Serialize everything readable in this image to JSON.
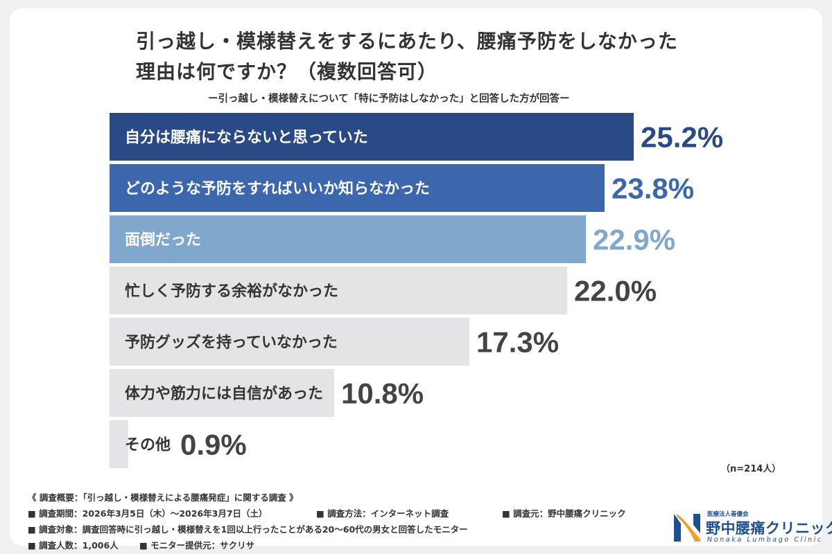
{
  "header": {
    "title_line1": "引っ越し・模様替えをするにあたり、腰痛予防をしなかった",
    "title_line2": "理由は何ですか？（複数回答可）",
    "subtitle": "ー引っ越し・模様替えについて「特に予防はしなかった」と回答した方が回答ー"
  },
  "chart_data": {
    "type": "bar",
    "orientation": "horizontal",
    "categories": [
      "自分は腰痛にならないと思っていた",
      "どのような予防をすればいいか知らなかった",
      "面倒だった",
      "忙しく予防する余裕がなかった",
      "予防グッズを持っていなかった",
      "体力や筋力には自信があった",
      "その他"
    ],
    "values": [
      25.2,
      23.8,
      22.9,
      22.0,
      17.3,
      10.8,
      0.9
    ],
    "value_labels": [
      "25.2%",
      "23.8%",
      "22.9%",
      "22.0%",
      "17.3%",
      "10.8%",
      "0.9%"
    ],
    "bar_colors": [
      "#2a4a86",
      "#3d67ac",
      "#7fa8cc",
      "#e4e4e6",
      "#e4e4e6",
      "#e4e4e6",
      "#e4e4e6"
    ],
    "category_label_colors": [
      "#ffffff",
      "#ffffff",
      "#ffffff",
      "#333333",
      "#333333",
      "#333333",
      "#333333"
    ],
    "value_label_colors": [
      "#2a4a86",
      "#3d67ac",
      "#7fa8cc",
      "#444444",
      "#444444",
      "#444444",
      "#444444"
    ],
    "xlim": [
      0,
      25.2
    ],
    "grid": false,
    "legend": "none"
  },
  "sample": "（n=214人）",
  "footer": {
    "line1": "《 調査概要：「引っ越し・模様替えによる腰痛発症」に関する調査 》",
    "period": "■ 調査期間：2026年3月5日（木）〜2026年3月7日（土）",
    "method": "■ 調査方法：インターネット調査",
    "source": "■ 調査元：野中腰痛クリニック",
    "target": "■ 調査対象：調査回答時に引っ越し・模様替えを1回以上行ったことがある20〜60代の男女と回答したモニター",
    "count": "■ 調査人数：1,006人",
    "provider": "■ モニター提供元：サクリサ"
  },
  "logo": {
    "corp": "医療法人善優会",
    "name": "野中腰痛クリニック",
    "roman": "Nonaka Lumbago Clinic",
    "color": "#1d4f91"
  }
}
